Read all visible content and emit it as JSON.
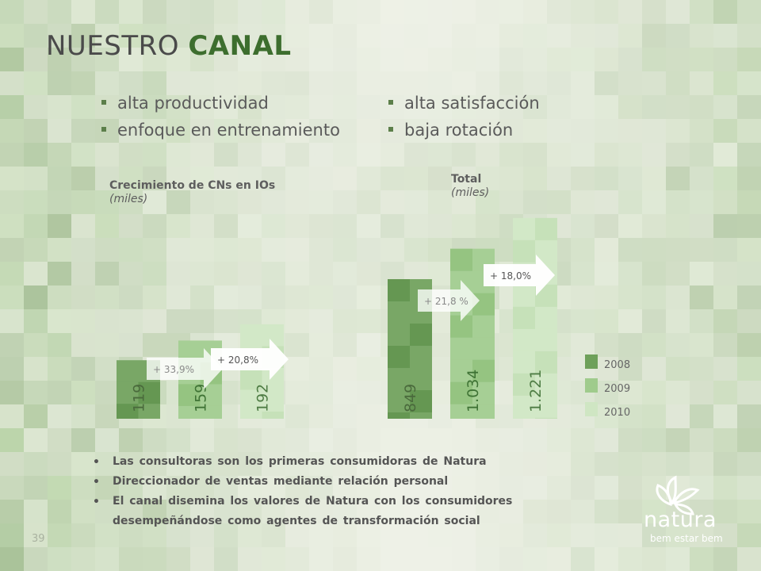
{
  "title": {
    "prefix": "NUESTRO",
    "bold": "CANAL"
  },
  "bullets_left": [
    "alta productividad",
    "enfoque en entrenamiento"
  ],
  "bullets_right": [
    "alta satisfacción",
    "baja rotación"
  ],
  "legend": {
    "items": [
      "2008",
      "2009",
      "2010"
    ]
  },
  "colors": {
    "y2008": "#6ea05a",
    "y2009": "#9fcb8c",
    "y2010": "#cfe6c3",
    "accent": "#3d6e2e"
  },
  "chart_data": [
    {
      "type": "bar",
      "title": "Crecimiento de CNs en IOs",
      "subtitle": "(miles)",
      "categories": [
        "2008",
        "2009",
        "2010"
      ],
      "values": [
        119,
        159,
        192
      ],
      "value_labels": [
        "119",
        "159",
        "192"
      ],
      "growth_labels": [
        "+ 33,9%",
        "+ 20,8%"
      ]
    },
    {
      "type": "bar",
      "title": "Total",
      "subtitle": "(miles)",
      "categories": [
        "2008",
        "2009",
        "2010"
      ],
      "values": [
        849,
        1034,
        1221
      ],
      "value_labels": [
        "849",
        "1.034",
        "1.221"
      ],
      "growth_labels": [
        "+ 21,8 %",
        "+ 18,0%"
      ]
    }
  ],
  "notes": [
    "Las consultoras son los primeras consumidoras de Natura",
    "Direccionador de ventas mediante relación personal",
    "El canal disemina los valores de Natura con los consumidores",
    "desempeñándose  como agentes de transformación  social"
  ],
  "page_number": "39",
  "logo": {
    "word": "natura",
    "tagline": "bem estar bem"
  }
}
